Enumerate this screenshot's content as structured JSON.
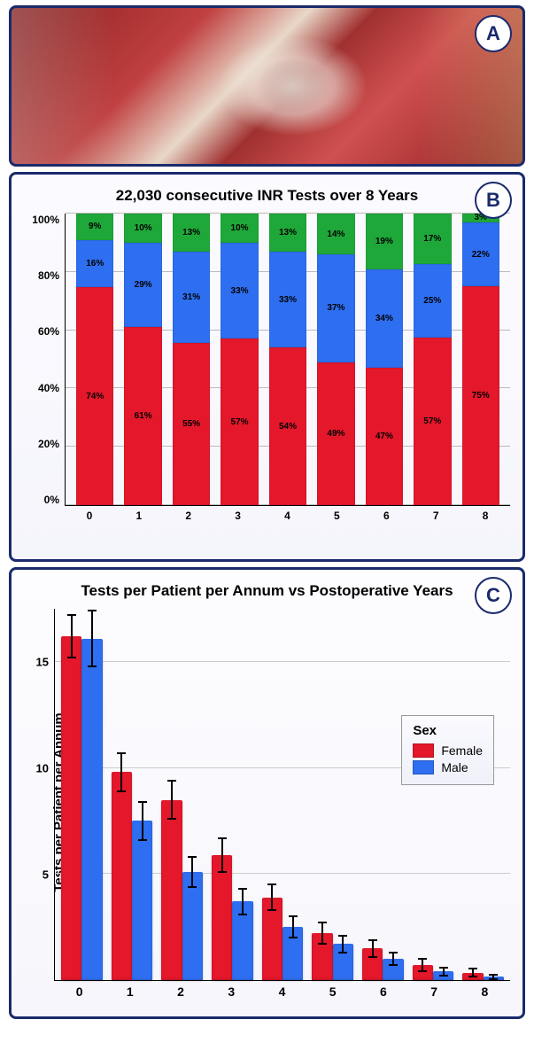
{
  "panelA": {
    "label": "A"
  },
  "panelB": {
    "label": "B",
    "title": "22,030 consecutive INR Tests over 8 Years",
    "title_fontsize": 17,
    "type": "stacked-bar-100",
    "categories": [
      "0",
      "1",
      "2",
      "3",
      "4",
      "5",
      "6",
      "7",
      "8"
    ],
    "y_ticks": [
      "100%",
      "80%",
      "60%",
      "40%",
      "20%",
      "0%"
    ],
    "ylim": [
      0,
      100
    ],
    "series": {
      "low": {
        "color": "#e4172b",
        "values": [
          74,
          61,
          55,
          57,
          54,
          49,
          47,
          57,
          75
        ]
      },
      "mid": {
        "color": "#2e6ef0",
        "values": [
          16,
          29,
          31,
          33,
          33,
          37,
          34,
          25,
          22
        ]
      },
      "high": {
        "color": "#1fa83a",
        "values": [
          9,
          10,
          13,
          10,
          13,
          14,
          19,
          17,
          3
        ]
      }
    },
    "label_fontsize": 10,
    "axis_fontsize": 12,
    "background": "#f8f8fd",
    "grid_color": "#bbbbbb"
  },
  "panelC": {
    "label": "C",
    "title": "Tests per Patient per Annum vs Postoperative Years",
    "title_fontsize": 17,
    "type": "grouped-bar",
    "categories": [
      "0",
      "1",
      "2",
      "3",
      "4",
      "5",
      "6",
      "7",
      "8"
    ],
    "ylabel": "Tests per Patient per Annum",
    "ylim": [
      0,
      17.5
    ],
    "y_ticks": [
      {
        "v": 5,
        "l": "5"
      },
      {
        "v": 10,
        "l": "10"
      },
      {
        "v": 15,
        "l": "15"
      }
    ],
    "series": {
      "female": {
        "color": "#e4172b",
        "label": "Female",
        "values": [
          16.2,
          9.8,
          8.5,
          5.9,
          3.9,
          2.2,
          1.5,
          0.7,
          0.35
        ],
        "err": [
          1.0,
          0.9,
          0.9,
          0.8,
          0.6,
          0.5,
          0.4,
          0.3,
          0.2
        ]
      },
      "male": {
        "color": "#2e6ef0",
        "label": "Male",
        "values": [
          16.1,
          7.5,
          5.1,
          3.7,
          2.5,
          1.7,
          1.0,
          0.4,
          0.15
        ],
        "err": [
          1.3,
          0.9,
          0.7,
          0.6,
          0.5,
          0.4,
          0.3,
          0.2,
          0.1
        ]
      }
    },
    "legend_title": "Sex",
    "axis_fontsize": 14,
    "background": "#f9f9fd",
    "grid_color": "#cccccc"
  }
}
